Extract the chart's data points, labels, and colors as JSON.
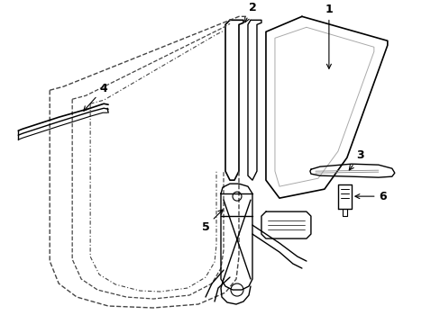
{
  "background_color": "#ffffff",
  "line_color": "#000000",
  "dashed_color": "#444444",
  "fig_width": 4.89,
  "fig_height": 3.6,
  "dpi": 100
}
